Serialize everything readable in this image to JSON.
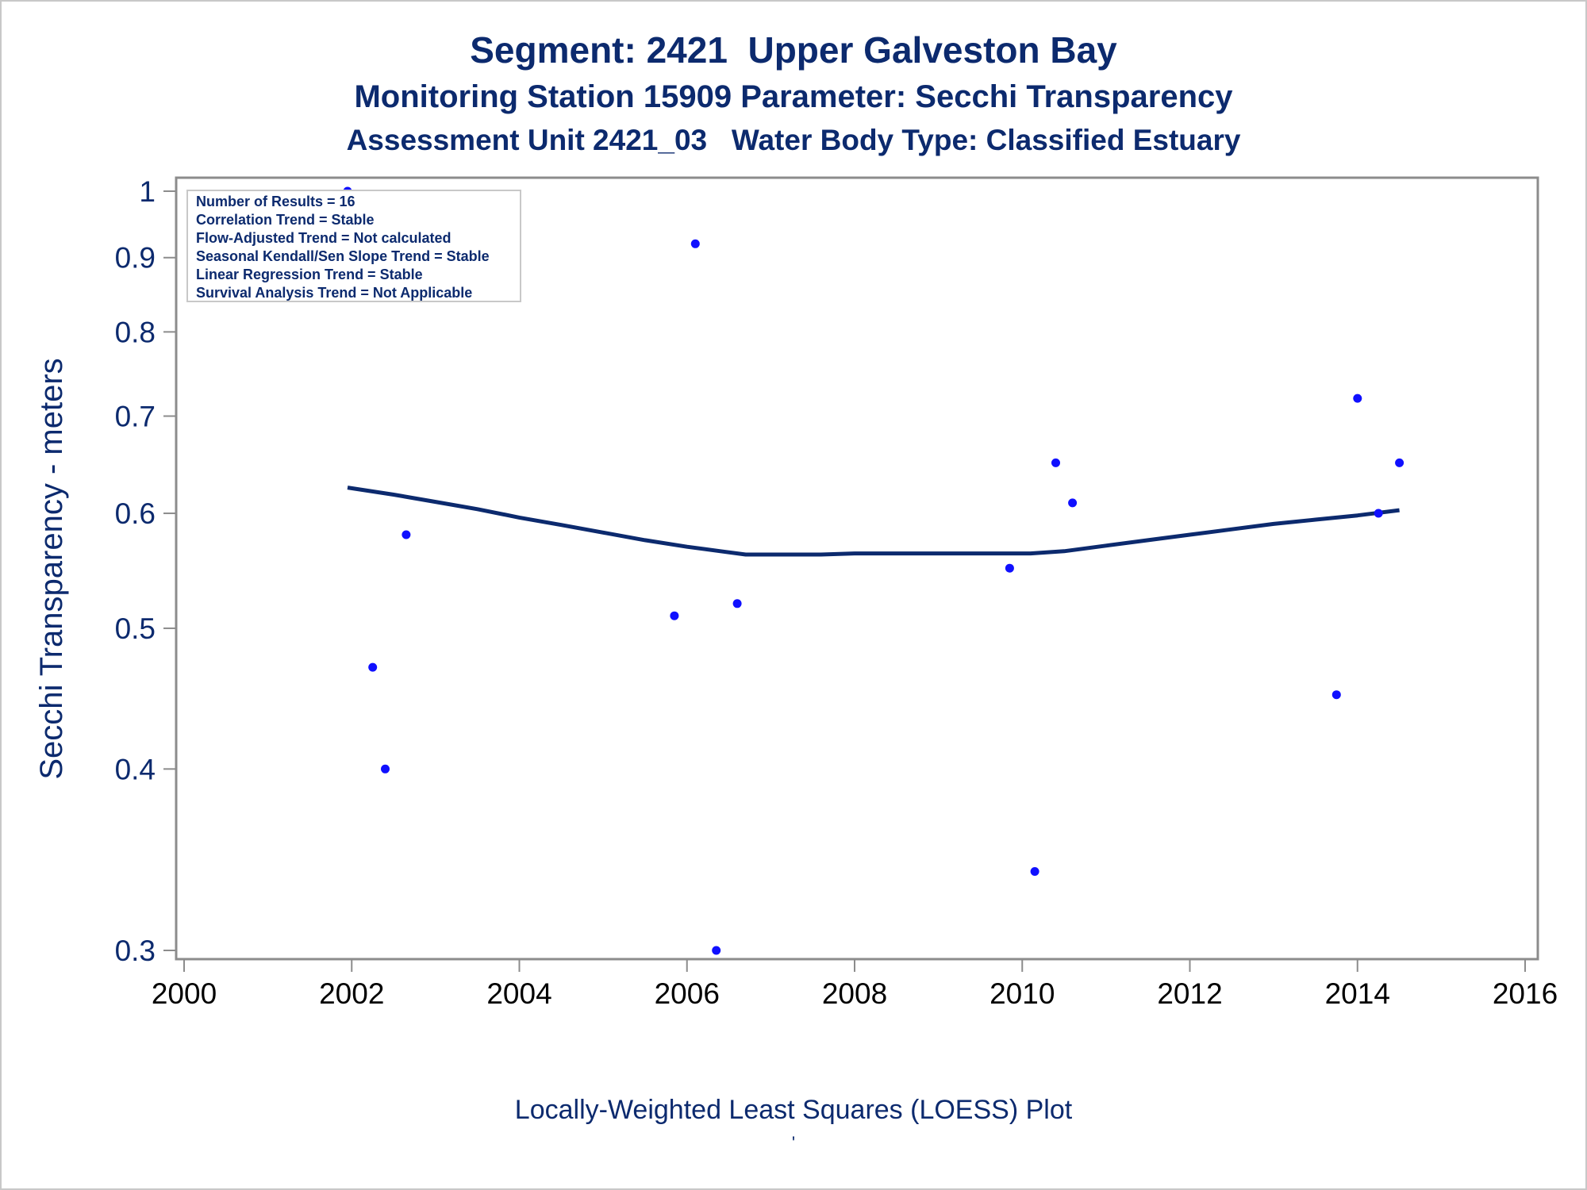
{
  "titles": {
    "line1": "Segment: 2421  Upper Galveston Bay",
    "line2": "Monitoring Station 15909 Parameter: Secchi Transparency",
    "line3": "Assessment Unit 2421_03   Water Body Type: Classified Estuary"
  },
  "footnote": "Locally-Weighted Least Squares (LOESS) Plot",
  "footnote_mark": "'",
  "stats_box": [
    "Number of Results = 16",
    "Correlation Trend = Stable",
    "Flow-Adjusted Trend = Not calculated",
    "Seasonal Kendall/Sen Slope Trend = Stable",
    "Linear Regression Trend = Stable",
    "Survival Analysis Trend = Not Applicable"
  ],
  "colors": {
    "text": "#0c2a6e",
    "points": "#1010ff",
    "loess": "#0c2a6e",
    "axis": "#8c8c8c"
  },
  "chart_data": {
    "type": "scatter",
    "title": "Segment: 2421  Upper Galveston Bay",
    "xlabel": "",
    "ylabel": "Secchi Transparency - meters",
    "x_scale": "linear",
    "y_scale": "log",
    "xlim": [
      2000,
      2016
    ],
    "ylim": [
      0.295,
      1.02
    ],
    "xticks": [
      2000,
      2002,
      2004,
      2006,
      2008,
      2010,
      2012,
      2014,
      2016
    ],
    "yticks": [
      0.3,
      0.4,
      0.5,
      0.6,
      0.7,
      0.8,
      0.9,
      1
    ],
    "ytick_labels": [
      "0.3",
      "0.4",
      "0.5",
      "0.6",
      "0.7",
      "0.8",
      "0.9",
      "1"
    ],
    "grid": false,
    "series": [
      {
        "type": "scatter",
        "points": [
          {
            "x": 2001.95,
            "y": 1.0
          },
          {
            "x": 2002.25,
            "y": 0.47
          },
          {
            "x": 2002.4,
            "y": 0.4
          },
          {
            "x": 2002.65,
            "y": 0.58
          },
          {
            "x": 2005.85,
            "y": 0.51
          },
          {
            "x": 2006.1,
            "y": 0.92
          },
          {
            "x": 2006.35,
            "y": 0.3
          },
          {
            "x": 2006.6,
            "y": 0.52
          },
          {
            "x": 2009.85,
            "y": 0.55
          },
          {
            "x": 2010.15,
            "y": 0.34
          },
          {
            "x": 2010.4,
            "y": 0.65
          },
          {
            "x": 2010.6,
            "y": 0.61
          },
          {
            "x": 2013.75,
            "y": 0.45
          },
          {
            "x": 2014.0,
            "y": 0.72
          },
          {
            "x": 2014.25,
            "y": 0.6
          },
          {
            "x": 2014.5,
            "y": 0.65
          }
        ]
      },
      {
        "type": "line",
        "points": [
          {
            "x": 2001.95,
            "y": 0.625
          },
          {
            "x": 2002.5,
            "y": 0.618
          },
          {
            "x": 2003.0,
            "y": 0.611
          },
          {
            "x": 2003.5,
            "y": 0.604
          },
          {
            "x": 2004.0,
            "y": 0.596
          },
          {
            "x": 2004.5,
            "y": 0.589
          },
          {
            "x": 2005.0,
            "y": 0.582
          },
          {
            "x": 2005.5,
            "y": 0.575
          },
          {
            "x": 2006.0,
            "y": 0.569
          },
          {
            "x": 2006.4,
            "y": 0.565
          },
          {
            "x": 2006.7,
            "y": 0.562
          },
          {
            "x": 2007.0,
            "y": 0.562
          },
          {
            "x": 2007.6,
            "y": 0.562
          },
          {
            "x": 2008.0,
            "y": 0.563
          },
          {
            "x": 2009.0,
            "y": 0.563
          },
          {
            "x": 2010.1,
            "y": 0.563
          },
          {
            "x": 2010.5,
            "y": 0.565
          },
          {
            "x": 2011.0,
            "y": 0.57
          },
          {
            "x": 2011.5,
            "y": 0.575
          },
          {
            "x": 2012.0,
            "y": 0.58
          },
          {
            "x": 2012.5,
            "y": 0.585
          },
          {
            "x": 2013.0,
            "y": 0.59
          },
          {
            "x": 2013.5,
            "y": 0.594
          },
          {
            "x": 2014.0,
            "y": 0.598
          },
          {
            "x": 2014.5,
            "y": 0.603
          }
        ]
      }
    ]
  }
}
